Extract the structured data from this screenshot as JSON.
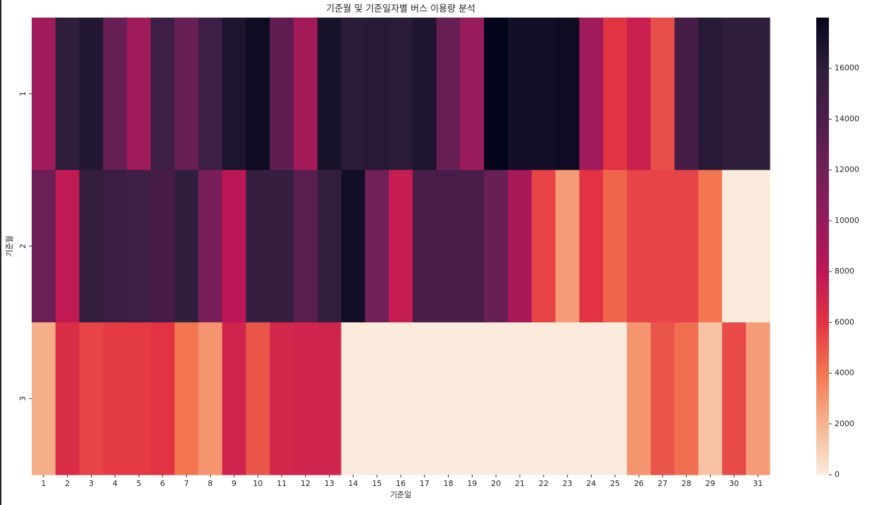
{
  "chart_data": {
    "type": "heatmap",
    "title": "기준월 및 기준일자별 버스 이용량 분석",
    "x_label": "기준일",
    "y_label": "기준월",
    "x": [
      1,
      2,
      3,
      4,
      5,
      6,
      7,
      8,
      9,
      10,
      11,
      12,
      13,
      14,
      15,
      16,
      17,
      18,
      19,
      20,
      21,
      22,
      23,
      24,
      25,
      26,
      27,
      28,
      29,
      30,
      31
    ],
    "y": [
      1,
      2,
      3
    ],
    "values": [
      [
        9500,
        16000,
        16500,
        12500,
        9500,
        15000,
        12500,
        15000,
        16800,
        17500,
        13000,
        9300,
        17000,
        16200,
        16300,
        16200,
        16700,
        12500,
        9800,
        18000,
        17200,
        17200,
        17500,
        9500,
        6000,
        7300,
        5200,
        14500,
        16300,
        16000,
        16000
      ],
      [
        12300,
        7800,
        15700,
        15300,
        15000,
        14500,
        15800,
        11500,
        8000,
        15500,
        15500,
        13300,
        15700,
        17200,
        12000,
        7500,
        14300,
        14300,
        14300,
        12500,
        9000,
        5500,
        2800,
        6000,
        4500,
        5500,
        5500,
        5500,
        4000,
        0,
        0
      ],
      [
        2200,
        6500,
        5500,
        5800,
        5800,
        6000,
        4000,
        3000,
        7000,
        5000,
        6800,
        7000,
        7000,
        0,
        0,
        0,
        0,
        0,
        0,
        0,
        0,
        0,
        0,
        0,
        0,
        3000,
        5000,
        4200,
        1500,
        5300,
        2800
      ]
    ],
    "clim": [
      0,
      18000
    ],
    "cticks": [
      0,
      2000,
      4000,
      6000,
      8000,
      10000,
      12000,
      14000,
      16000
    ],
    "colorscale": [
      "#faebdd",
      "#f6b48f",
      "#f37651",
      "#e13342",
      "#bc1656",
      "#951c5b",
      "#701f57",
      "#4c1d4b",
      "#2e1e3c",
      "#03051a"
    ]
  }
}
